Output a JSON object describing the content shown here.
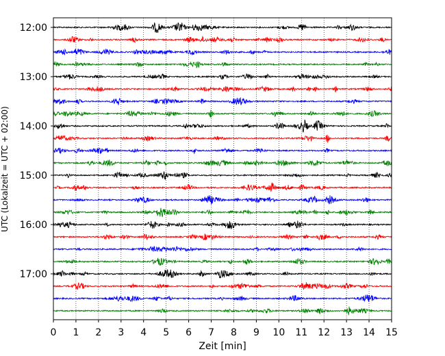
{
  "chart_data": {
    "type": "line",
    "title": "",
    "xlabel": "Zeit  [min]",
    "ylabel": "UTC (Lokalzeit = UTC + 02:00)",
    "xlim": [
      0,
      15
    ],
    "x_ticks": [
      "0",
      "1",
      "2",
      "3",
      "4",
      "5",
      "6",
      "7",
      "8",
      "9",
      "10",
      "11",
      "12",
      "13",
      "14",
      "15"
    ],
    "y_ticks": [
      "12:00",
      "13:00",
      "14:00",
      "15:00",
      "16:00",
      "17:00"
    ],
    "grid": "vertical dotted lines at each minute",
    "trace_interval_minutes": 15,
    "trace_colors_cycle": [
      "#000000",
      "#ff0000",
      "#0000ff",
      "#008000"
    ],
    "series": [
      {
        "start": "12:00",
        "color": "#000000"
      },
      {
        "start": "12:15",
        "color": "#ff0000"
      },
      {
        "start": "12:30",
        "color": "#0000ff"
      },
      {
        "start": "12:45",
        "color": "#008000"
      },
      {
        "start": "13:00",
        "color": "#000000"
      },
      {
        "start": "13:15",
        "color": "#ff0000"
      },
      {
        "start": "13:30",
        "color": "#0000ff"
      },
      {
        "start": "13:45",
        "color": "#008000"
      },
      {
        "start": "14:00",
        "color": "#000000"
      },
      {
        "start": "14:15",
        "color": "#ff0000"
      },
      {
        "start": "14:30",
        "color": "#0000ff"
      },
      {
        "start": "14:45",
        "color": "#008000"
      },
      {
        "start": "15:00",
        "color": "#000000"
      },
      {
        "start": "15:15",
        "color": "#ff0000"
      },
      {
        "start": "15:30",
        "color": "#0000ff"
      },
      {
        "start": "15:45",
        "color": "#008000"
      },
      {
        "start": "16:00",
        "color": "#000000"
      },
      {
        "start": "16:15",
        "color": "#ff0000"
      },
      {
        "start": "16:30",
        "color": "#0000ff"
      },
      {
        "start": "16:45",
        "color": "#008000"
      },
      {
        "start": "17:00",
        "color": "#000000"
      },
      {
        "start": "17:15",
        "color": "#ff0000"
      },
      {
        "start": "17:30",
        "color": "#0000ff"
      },
      {
        "start": "17:45",
        "color": "#008000"
      }
    ]
  }
}
